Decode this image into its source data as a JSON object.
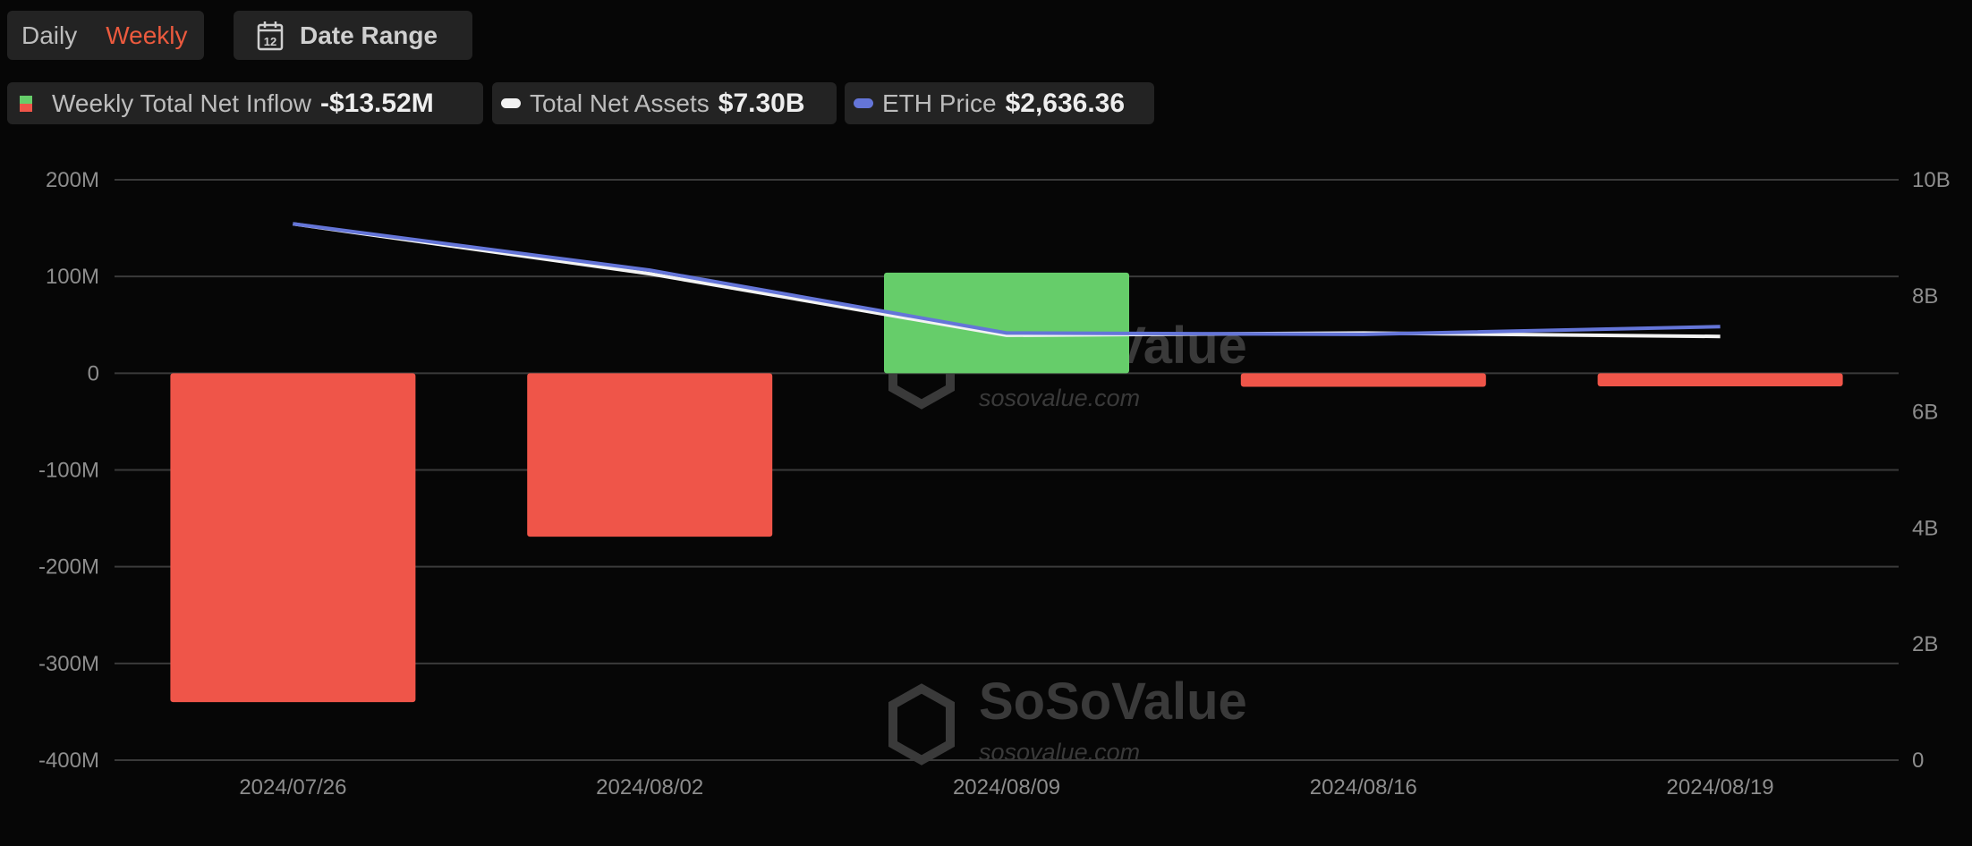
{
  "controls": {
    "daily_label": "Daily",
    "weekly_label": "Weekly",
    "selected": "Weekly",
    "date_range_label": "Date Range",
    "calendar_icon_text": "12"
  },
  "legend": [
    {
      "label": "Weekly Total Net Inflow",
      "value": "-$13.52M",
      "icon": "green-red-square"
    },
    {
      "label": "Total Net Assets",
      "value": "$7.30B",
      "color": "#ffffff"
    },
    {
      "label": "ETH Price",
      "value": "$2,636.36",
      "color": "#6475d8"
    }
  ],
  "watermark": {
    "brand": "SoSoValue",
    "site": "sosovalue.com"
  },
  "chart_data": {
    "type": "bar+line",
    "categories": [
      "2024/07/26",
      "2024/08/02",
      "2024/08/09",
      "2024/08/16",
      "2024/08/19"
    ],
    "series": [
      {
        "name": "Weekly Total Net Inflow",
        "type": "bar",
        "axis": "left",
        "values": [
          -340,
          -169,
          104,
          -14,
          -13.52
        ],
        "unit": "M",
        "positive_color": "#66cd6a",
        "negative_color": "#ef5549"
      },
      {
        "name": "Total Net Assets",
        "type": "line",
        "axis": "right",
        "values": [
          9.24,
          8.38,
          7.32,
          7.36,
          7.3
        ],
        "unit": "B",
        "color": "#f2f2f2"
      },
      {
        "name": "ETH Price",
        "type": "line",
        "axis": "hidden",
        "values": [
          3262,
          2980,
          2598,
          2590,
          2636.36
        ],
        "unit": "$",
        "color": "#6475d8"
      }
    ],
    "left_axis": {
      "ylim": [
        -400,
        200
      ],
      "ticks": [
        "200M",
        "100M",
        "0",
        "-100M",
        "-200M",
        "-300M",
        "-400M"
      ]
    },
    "right_axis": {
      "ylim": [
        0,
        10
      ],
      "ticks": [
        "10B",
        "8B",
        "6B",
        "4B",
        "2B",
        "0"
      ]
    },
    "eth_axis_range": [
      0,
      3530
    ],
    "grid": true,
    "legend_placement": "top-left"
  }
}
